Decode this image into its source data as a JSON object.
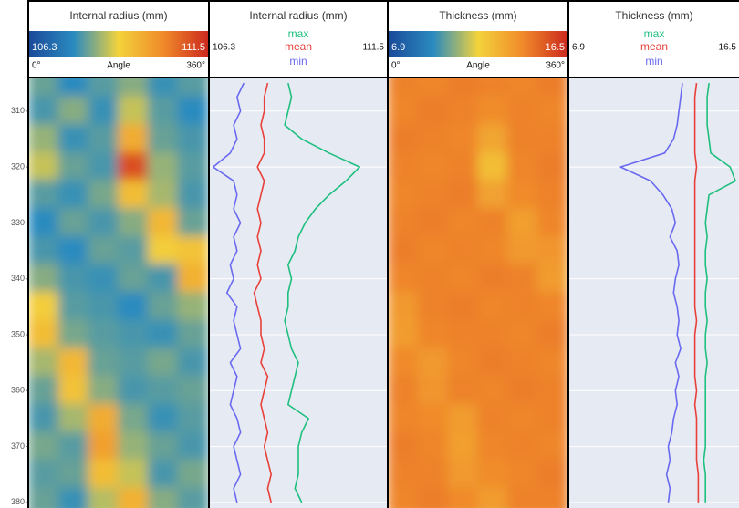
{
  "chart_data": [
    {
      "type": "heatmap",
      "title": "Internal radius (mm)",
      "xlabel": "Angle",
      "xlim": [
        0,
        360
      ],
      "xticks": [
        {
          "value": 0,
          "label": "0°"
        },
        {
          "value": 360,
          "label": "360°"
        }
      ],
      "ylim": [
        304,
        381
      ],
      "yticks": [
        310,
        320,
        330,
        340,
        350,
        360,
        370,
        380
      ],
      "zlim": [
        106.3,
        111.5
      ],
      "colorscale": [
        "#1a4a9a",
        "#2a8bbf",
        "#f3d33b",
        "#f08a2a",
        "#cc2a1e"
      ],
      "x": [
        30,
        90,
        150,
        210,
        270,
        330
      ],
      "y": [
        305,
        310,
        315,
        320,
        325,
        330,
        335,
        340,
        345,
        350,
        355,
        360,
        365,
        370,
        375,
        380
      ],
      "z": [
        [
          108.0,
          107.6,
          107.9,
          108.2,
          107.7,
          107.9
        ],
        [
          107.8,
          108.2,
          107.7,
          108.6,
          107.9,
          107.6
        ],
        [
          108.3,
          107.7,
          107.9,
          109.6,
          108.0,
          107.8
        ],
        [
          108.6,
          108.0,
          107.8,
          111.0,
          108.3,
          107.9
        ],
        [
          107.9,
          107.7,
          108.1,
          109.3,
          108.4,
          107.8
        ],
        [
          107.6,
          108.0,
          107.8,
          108.2,
          109.4,
          108.0
        ],
        [
          107.8,
          107.6,
          108.0,
          107.9,
          109.0,
          109.2
        ],
        [
          108.2,
          107.8,
          107.7,
          108.0,
          107.8,
          109.5
        ],
        [
          109.0,
          107.9,
          107.8,
          107.6,
          108.0,
          108.3
        ],
        [
          109.3,
          108.1,
          107.9,
          107.8,
          107.7,
          108.0
        ],
        [
          108.4,
          109.4,
          108.0,
          107.9,
          108.1,
          107.8
        ],
        [
          108.0,
          109.2,
          108.2,
          107.8,
          107.9,
          108.0
        ],
        [
          107.8,
          108.4,
          109.6,
          108.1,
          107.7,
          107.9
        ],
        [
          108.1,
          107.9,
          109.8,
          108.3,
          108.0,
          107.8
        ],
        [
          107.9,
          108.0,
          109.3,
          108.6,
          107.8,
          108.1
        ],
        [
          108.0,
          107.7,
          108.5,
          109.5,
          108.2,
          107.9
        ]
      ]
    },
    {
      "type": "line",
      "title": "Internal radius (mm)",
      "xlim": [
        106.3,
        111.5
      ],
      "ylim": [
        304,
        381
      ],
      "y": [
        305,
        307.5,
        310,
        312.5,
        315,
        317.5,
        320,
        322.5,
        325,
        327.5,
        330,
        332.5,
        335,
        337.5,
        340,
        342.5,
        345,
        347.5,
        350,
        352.5,
        355,
        357.5,
        360,
        362.5,
        365,
        367.5,
        370,
        372.5,
        375,
        377.5,
        380
      ],
      "series": [
        {
          "name": "max",
          "color": "#1fbf7f",
          "values": [
            108.6,
            108.7,
            108.6,
            108.5,
            109.0,
            109.8,
            110.7,
            110.3,
            109.8,
            109.4,
            109.1,
            108.9,
            108.8,
            108.6,
            108.7,
            108.6,
            108.6,
            108.5,
            108.6,
            108.7,
            108.9,
            108.8,
            108.7,
            108.6,
            109.2,
            109.0,
            108.9,
            108.9,
            108.9,
            108.8,
            109.0
          ]
        },
        {
          "name": "mean",
          "color": "#e8403a",
          "values": [
            108.0,
            107.9,
            107.9,
            107.8,
            107.9,
            107.9,
            107.7,
            107.9,
            107.8,
            107.7,
            107.8,
            107.7,
            107.8,
            107.7,
            107.8,
            107.6,
            107.7,
            107.8,
            107.8,
            107.9,
            107.8,
            108.0,
            107.9,
            107.8,
            107.9,
            108.0,
            107.9,
            108.0,
            108.1,
            108.0,
            108.1
          ]
        },
        {
          "name": "min",
          "color": "#6a6af0",
          "values": [
            107.3,
            107.1,
            107.2,
            107.0,
            107.1,
            106.9,
            106.4,
            107.0,
            107.1,
            107.0,
            107.2,
            107.0,
            107.1,
            106.9,
            107.0,
            106.8,
            107.1,
            107.0,
            107.1,
            107.2,
            106.9,
            107.1,
            107.0,
            106.9,
            107.1,
            107.2,
            107.0,
            107.1,
            107.2,
            107.0,
            107.1
          ]
        }
      ]
    },
    {
      "type": "heatmap",
      "title": "Thickness (mm)",
      "xlabel": "Angle",
      "xlim": [
        0,
        360
      ],
      "xticks": [
        {
          "value": 0,
          "label": "0°"
        },
        {
          "value": 360,
          "label": "360°"
        }
      ],
      "ylim": [
        304,
        381
      ],
      "zlim": [
        6.9,
        16.5
      ],
      "colorscale": [
        "#1a4a9a",
        "#2a8bbf",
        "#f3d33b",
        "#f08a2a",
        "#cc2a1e"
      ],
      "x": [
        30,
        90,
        150,
        210,
        270,
        330
      ],
      "y": [
        305,
        310,
        315,
        320,
        325,
        330,
        335,
        340,
        345,
        350,
        355,
        360,
        365,
        370,
        375,
        380
      ],
      "z": [
        [
          14.3,
          14.2,
          14.4,
          14.3,
          14.2,
          14.4
        ],
        [
          14.2,
          14.4,
          14.3,
          14.0,
          14.3,
          14.2
        ],
        [
          14.4,
          14.3,
          14.2,
          13.2,
          14.3,
          14.3
        ],
        [
          14.3,
          14.2,
          14.3,
          12.4,
          14.2,
          14.4
        ],
        [
          14.2,
          14.3,
          14.4,
          13.3,
          14.1,
          14.3
        ],
        [
          14.3,
          14.4,
          14.2,
          14.3,
          13.4,
          14.2
        ],
        [
          14.4,
          14.2,
          14.3,
          14.2,
          13.6,
          13.7
        ],
        [
          14.2,
          14.3,
          14.2,
          14.4,
          14.3,
          13.5
        ],
        [
          13.6,
          14.3,
          14.4,
          14.2,
          14.3,
          14.2
        ],
        [
          13.5,
          14.2,
          14.3,
          14.3,
          14.2,
          14.4
        ],
        [
          14.1,
          13.6,
          14.2,
          14.4,
          14.3,
          14.2
        ],
        [
          14.3,
          13.7,
          14.3,
          14.2,
          14.4,
          14.3
        ],
        [
          14.2,
          14.1,
          13.5,
          14.3,
          14.2,
          14.3
        ],
        [
          14.4,
          14.2,
          13.4,
          14.2,
          14.3,
          14.2
        ],
        [
          14.3,
          14.3,
          13.6,
          14.0,
          14.2,
          14.4
        ],
        [
          14.2,
          14.4,
          14.1,
          13.5,
          14.3,
          14.3
        ]
      ]
    },
    {
      "type": "line",
      "title": "Thickness (mm)",
      "xlim": [
        6.9,
        16.5
      ],
      "ylim": [
        304,
        381
      ],
      "y": [
        305,
        307.5,
        310,
        312.5,
        315,
        317.5,
        320,
        322.5,
        325,
        327.5,
        330,
        332.5,
        335,
        337.5,
        340,
        342.5,
        345,
        347.5,
        350,
        352.5,
        355,
        357.5,
        360,
        362.5,
        365,
        367.5,
        370,
        372.5,
        375,
        377.5,
        380
      ],
      "series": [
        {
          "name": "max",
          "color": "#1fbf7f",
          "values": [
            14.8,
            14.7,
            14.7,
            14.7,
            14.8,
            14.9,
            16.0,
            16.3,
            14.8,
            14.7,
            14.6,
            14.7,
            14.6,
            14.6,
            14.7,
            14.6,
            14.6,
            14.7,
            14.6,
            14.6,
            14.7,
            14.6,
            14.6,
            14.6,
            14.6,
            14.6,
            14.6,
            14.5,
            14.6,
            14.6,
            14.6
          ]
        },
        {
          "name": "mean",
          "color": "#e8403a",
          "values": [
            14.1,
            14.0,
            14.0,
            14.0,
            14.0,
            14.0,
            14.1,
            14.0,
            14.0,
            14.0,
            14.0,
            14.0,
            14.0,
            14.0,
            14.0,
            14.0,
            14.0,
            14.1,
            14.0,
            14.0,
            14.0,
            14.0,
            14.1,
            14.0,
            14.1,
            14.1,
            14.1,
            14.1,
            14.2,
            14.2,
            14.2
          ]
        },
        {
          "name": "min",
          "color": "#6a6af0",
          "values": [
            13.3,
            13.2,
            13.1,
            13.0,
            12.8,
            12.3,
            9.8,
            11.5,
            12.2,
            12.7,
            12.9,
            12.6,
            13.0,
            13.1,
            12.9,
            12.8,
            13.0,
            13.1,
            13.0,
            13.2,
            12.9,
            13.1,
            12.9,
            13.0,
            12.8,
            12.7,
            12.5,
            12.6,
            12.4,
            12.6,
            12.5
          ]
        }
      ]
    }
  ]
}
